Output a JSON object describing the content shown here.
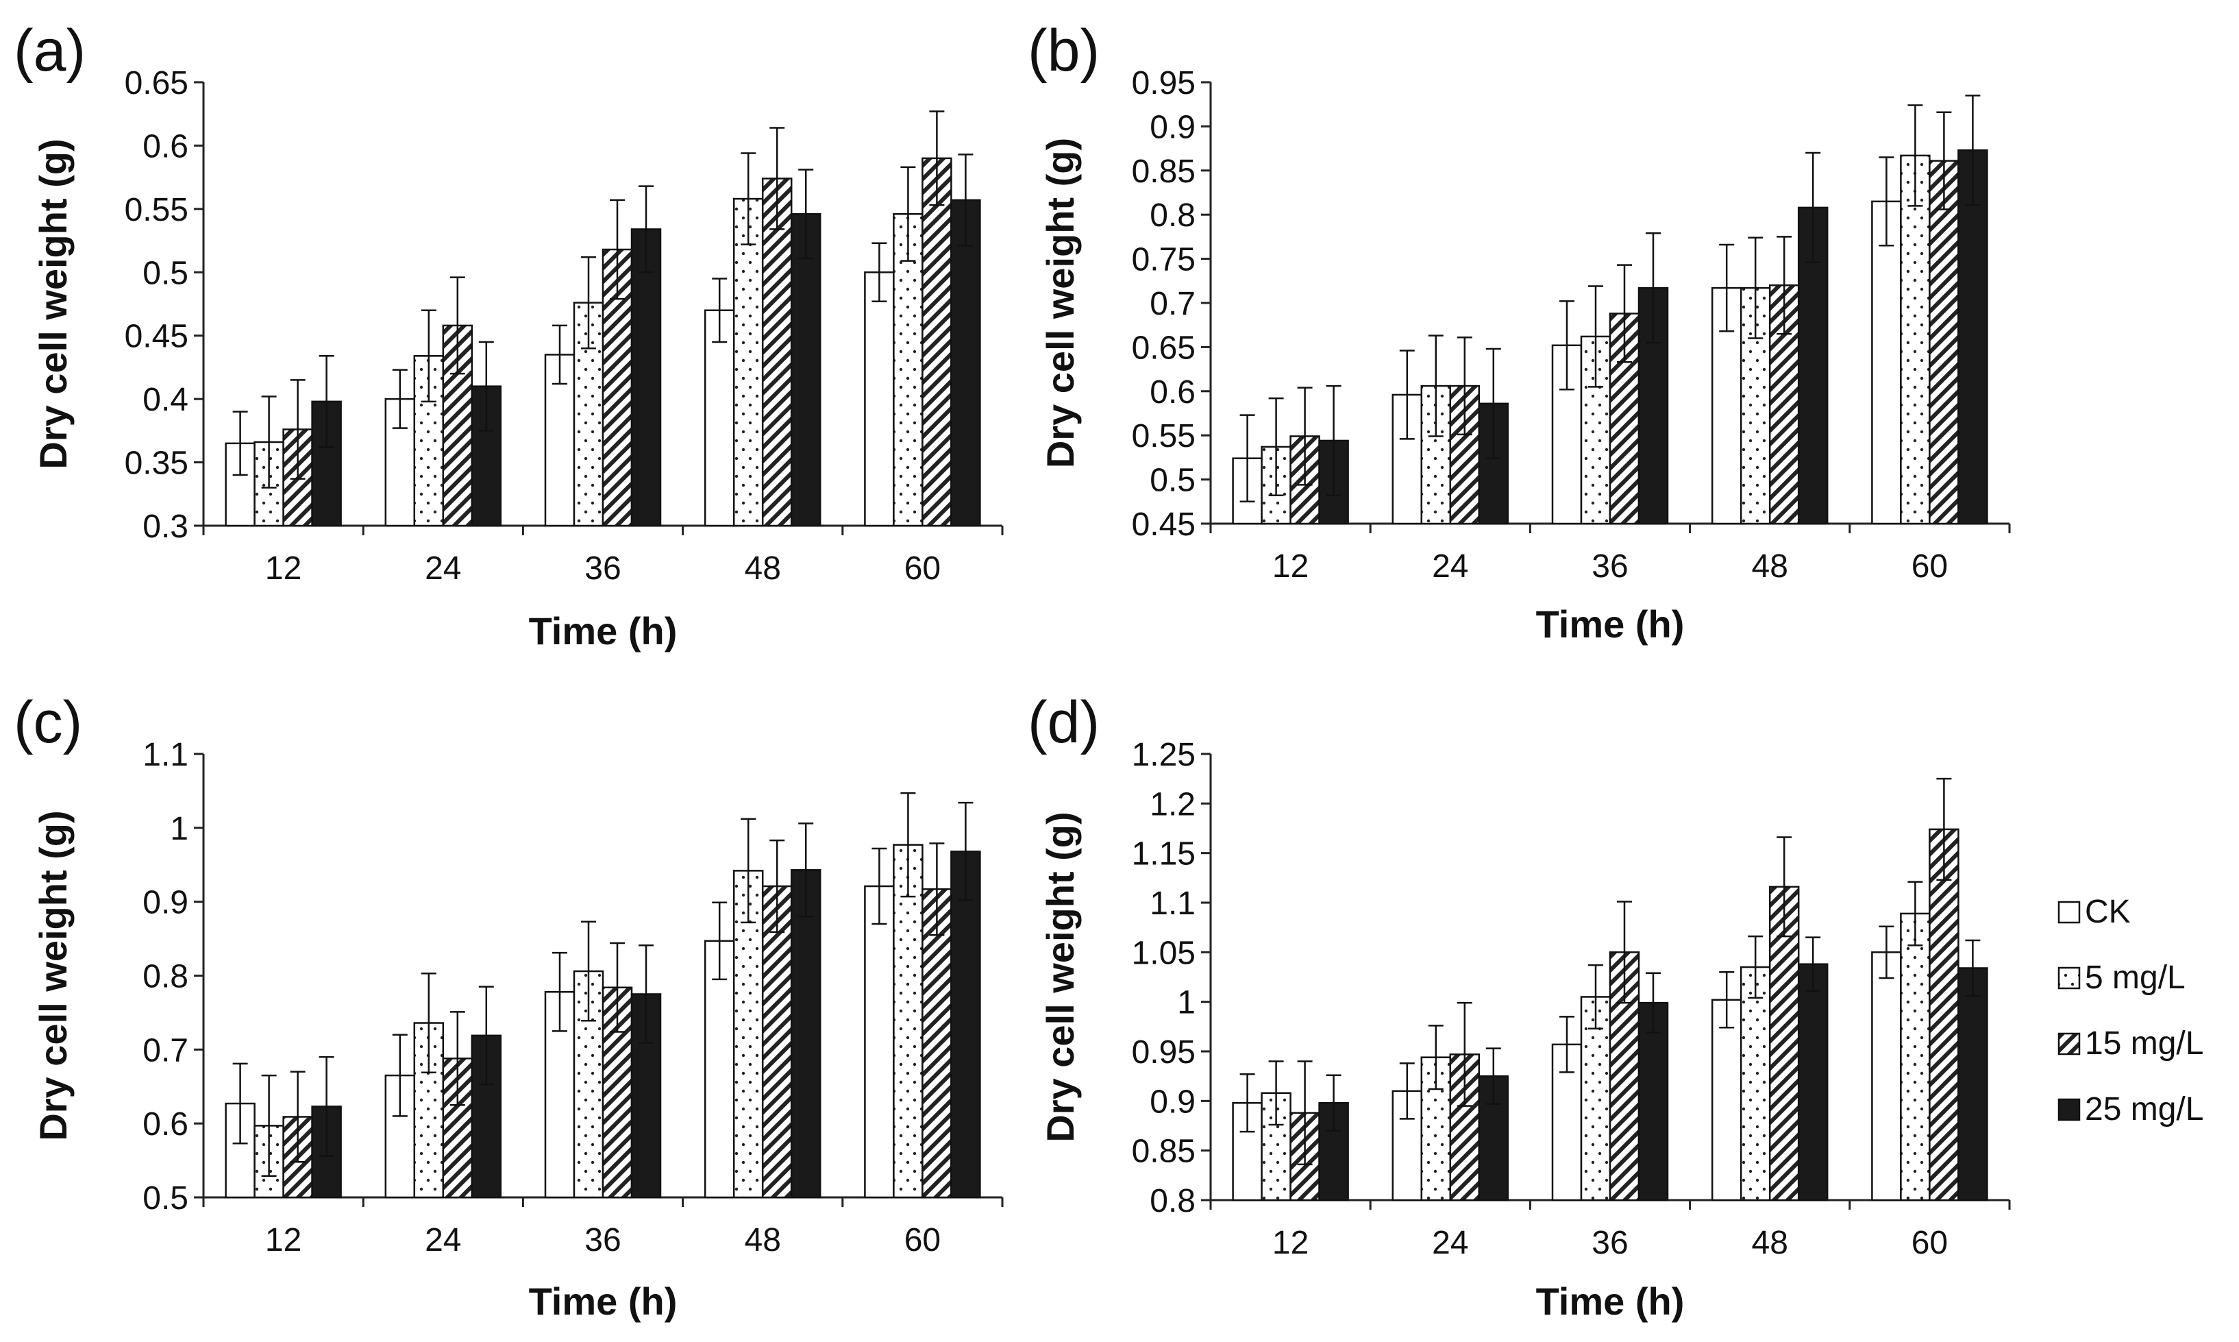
{
  "chart_data": [
    {
      "type": "bar",
      "panel": "(a)",
      "xlabel": "Time (h)",
      "ylabel": "Dry cell weight (g)",
      "ylim": [
        0.3,
        0.65
      ],
      "ytick_step": 0.05,
      "yticks": [
        "0.3",
        "0.35",
        "0.4",
        "0.45",
        "0.5",
        "0.55",
        "0.6",
        "0.65"
      ],
      "categories": [
        "12",
        "24",
        "36",
        "48",
        "60"
      ],
      "series": [
        {
          "name": "CK",
          "values": [
            0.365,
            0.4,
            0.435,
            0.47,
            0.5
          ],
          "errors": [
            0.025,
            0.023,
            0.023,
            0.025,
            0.023
          ]
        },
        {
          "name": "5 mg/L",
          "values": [
            0.366,
            0.434,
            0.476,
            0.558,
            0.546
          ],
          "errors": [
            0.036,
            0.036,
            0.036,
            0.036,
            0.037
          ]
        },
        {
          "name": "15 mg/L",
          "values": [
            0.376,
            0.458,
            0.518,
            0.574,
            0.59
          ],
          "errors": [
            0.039,
            0.038,
            0.039,
            0.04,
            0.037
          ]
        },
        {
          "name": "25 mg/L",
          "values": [
            0.398,
            0.41,
            0.534,
            0.546,
            0.557
          ],
          "errors": [
            0.036,
            0.035,
            0.034,
            0.035,
            0.036
          ]
        }
      ]
    },
    {
      "type": "bar",
      "panel": "(b)",
      "xlabel": "Time (h)",
      "ylabel": "Dry cell weight (g)",
      "ylim": [
        0.45,
        0.95
      ],
      "ytick_step": 0.05,
      "yticks": [
        "0.45",
        "0.5",
        "0.55",
        "0.6",
        "0.65",
        "0.7",
        "0.75",
        "0.8",
        "0.85",
        "0.9",
        "0.95"
      ],
      "categories": [
        "12",
        "24",
        "36",
        "48",
        "60"
      ],
      "series": [
        {
          "name": "CK",
          "values": [
            0.524,
            0.596,
            0.652,
            0.717,
            0.815
          ],
          "errors": [
            0.049,
            0.05,
            0.05,
            0.049,
            0.05
          ]
        },
        {
          "name": "5 mg/L",
          "values": [
            0.537,
            0.606,
            0.662,
            0.717,
            0.867
          ],
          "errors": [
            0.055,
            0.057,
            0.057,
            0.057,
            0.057
          ]
        },
        {
          "name": "15 mg/L",
          "values": [
            0.549,
            0.606,
            0.688,
            0.72,
            0.861
          ],
          "errors": [
            0.055,
            0.055,
            0.055,
            0.055,
            0.055
          ]
        },
        {
          "name": "25 mg/L",
          "values": [
            0.544,
            0.586,
            0.717,
            0.808,
            0.873
          ],
          "errors": [
            0.062,
            0.062,
            0.062,
            0.062,
            0.062
          ]
        }
      ]
    },
    {
      "type": "bar",
      "panel": "(c)",
      "xlabel": "Time (h)",
      "ylabel": "Dry cell weight (g)",
      "ylim": [
        0.5,
        1.1
      ],
      "ytick_step": 0.1,
      "yticks": [
        "0.5",
        "0.6",
        "0.7",
        "0.8",
        "0.9",
        "1",
        "1.1"
      ],
      "categories": [
        "12",
        "24",
        "36",
        "48",
        "60"
      ],
      "series": [
        {
          "name": "CK",
          "values": [
            0.627,
            0.665,
            0.778,
            0.847,
            0.921
          ],
          "errors": [
            0.054,
            0.055,
            0.053,
            0.052,
            0.051
          ]
        },
        {
          "name": "5 mg/L",
          "values": [
            0.597,
            0.736,
            0.806,
            0.942,
            0.977
          ],
          "errors": [
            0.068,
            0.067,
            0.067,
            0.07,
            0.07
          ]
        },
        {
          "name": "15 mg/L",
          "values": [
            0.609,
            0.688,
            0.784,
            0.921,
            0.917
          ],
          "errors": [
            0.061,
            0.063,
            0.06,
            0.062,
            0.062
          ]
        },
        {
          "name": "25 mg/L",
          "values": [
            0.623,
            0.719,
            0.775,
            0.943,
            0.968
          ],
          "errors": [
            0.067,
            0.066,
            0.066,
            0.063,
            0.066
          ]
        }
      ]
    },
    {
      "type": "bar",
      "panel": "(d)",
      "xlabel": "Time (h)",
      "ylabel": "Dry cell weight (g)",
      "ylim": [
        0.8,
        1.25
      ],
      "ytick_step": 0.05,
      "yticks": [
        "0.8",
        "0.85",
        "0.9",
        "0.95",
        "1",
        "1.05",
        "1.1",
        "1.15",
        "1.2",
        "1.25"
      ],
      "categories": [
        "12",
        "24",
        "36",
        "48",
        "60"
      ],
      "series": [
        {
          "name": "CK",
          "values": [
            0.898,
            0.91,
            0.957,
            1.002,
            1.05
          ],
          "errors": [
            0.029,
            0.028,
            0.028,
            0.028,
            0.026
          ]
        },
        {
          "name": "5 mg/L",
          "values": [
            0.908,
            0.944,
            1.005,
            1.035,
            1.089
          ],
          "errors": [
            0.032,
            0.032,
            0.032,
            0.031,
            0.032
          ]
        },
        {
          "name": "15 mg/L",
          "values": [
            0.888,
            0.947,
            1.05,
            1.116,
            1.174
          ],
          "errors": [
            0.052,
            0.052,
            0.051,
            0.05,
            0.051
          ]
        },
        {
          "name": "25 mg/L",
          "values": [
            0.898,
            0.925,
            0.999,
            1.038,
            1.034
          ],
          "errors": [
            0.028,
            0.028,
            0.03,
            0.027,
            0.028
          ]
        }
      ]
    }
  ],
  "legend": {
    "position": "right",
    "items": [
      {
        "label": "CK",
        "pattern": "white"
      },
      {
        "label": "5 mg/L",
        "pattern": "dots"
      },
      {
        "label": "15 mg/L",
        "pattern": "hatch"
      },
      {
        "label": "25 mg/L",
        "pattern": "black"
      }
    ]
  }
}
